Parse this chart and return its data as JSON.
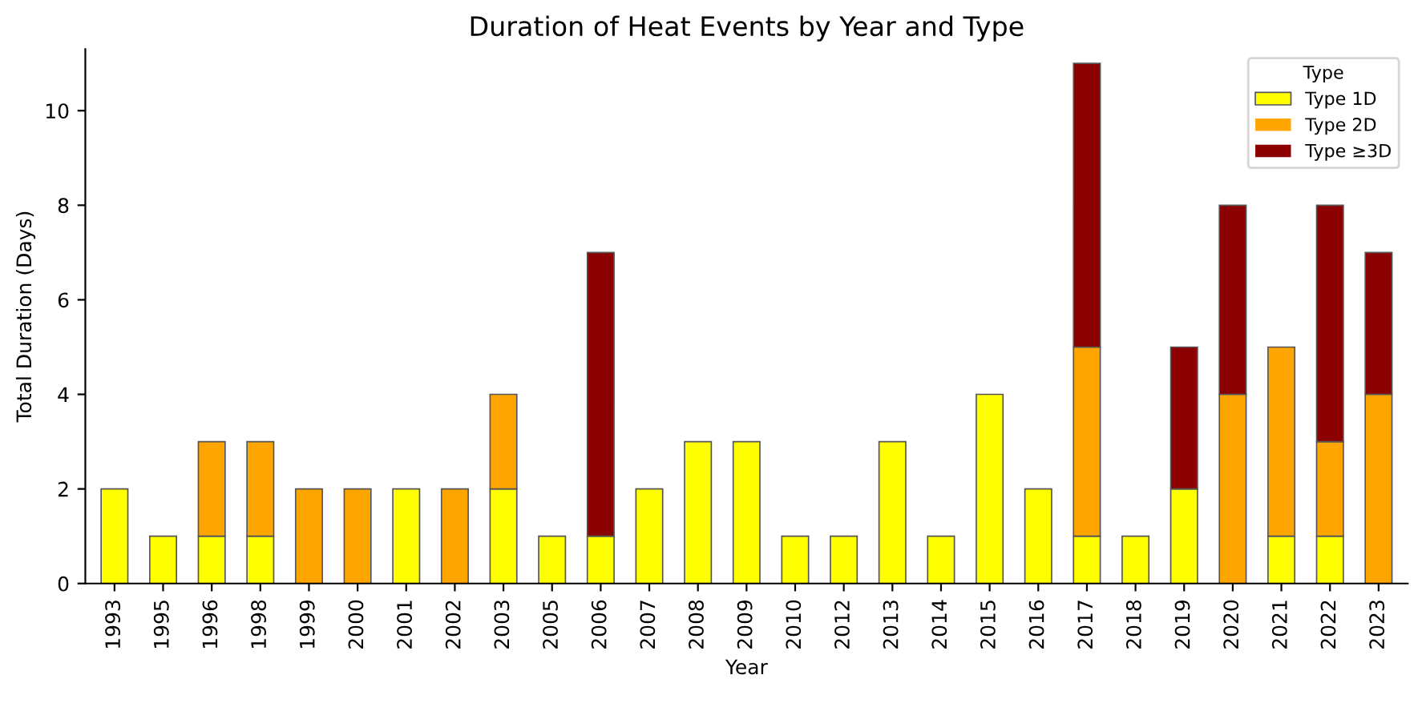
{
  "chart_data": {
    "type": "bar",
    "title": "Duration of Heat Events by Year and Type",
    "xlabel": "Year",
    "ylabel": "Total Duration (Days)",
    "legend_title": "Type",
    "categories": [
      "1993",
      "1995",
      "1996",
      "1998",
      "1999",
      "2000",
      "2001",
      "2002",
      "2003",
      "2005",
      "2006",
      "2007",
      "2008",
      "2009",
      "2010",
      "2012",
      "2013",
      "2014",
      "2015",
      "2016",
      "2017",
      "2018",
      "2019",
      "2020",
      "2021",
      "2022",
      "2023"
    ],
    "stacked": true,
    "series": [
      {
        "name": "Type 1D",
        "color": "#ffff00",
        "values": [
          2,
          1,
          1,
          1,
          0,
          0,
          2,
          0,
          2,
          1,
          1,
          2,
          3,
          3,
          1,
          1,
          3,
          1,
          4,
          2,
          1,
          1,
          2,
          0,
          1,
          1,
          0
        ]
      },
      {
        "name": "Type 2D",
        "color": "#ffa500",
        "values": [
          0,
          0,
          2,
          2,
          2,
          2,
          0,
          2,
          2,
          0,
          0,
          0,
          0,
          0,
          0,
          0,
          0,
          0,
          0,
          0,
          4,
          0,
          0,
          4,
          4,
          2,
          4
        ]
      },
      {
        "name": "Type ≥3D",
        "color": "#8b0000",
        "values": [
          0,
          0,
          0,
          0,
          0,
          0,
          0,
          0,
          0,
          0,
          6,
          0,
          0,
          0,
          0,
          0,
          0,
          0,
          0,
          0,
          6,
          0,
          3,
          4,
          0,
          5,
          3
        ]
      }
    ],
    "ylim": [
      0,
      11.3
    ],
    "yticks": [
      0,
      2,
      4,
      6,
      8,
      10
    ],
    "grid": false,
    "legend": "top right"
  }
}
